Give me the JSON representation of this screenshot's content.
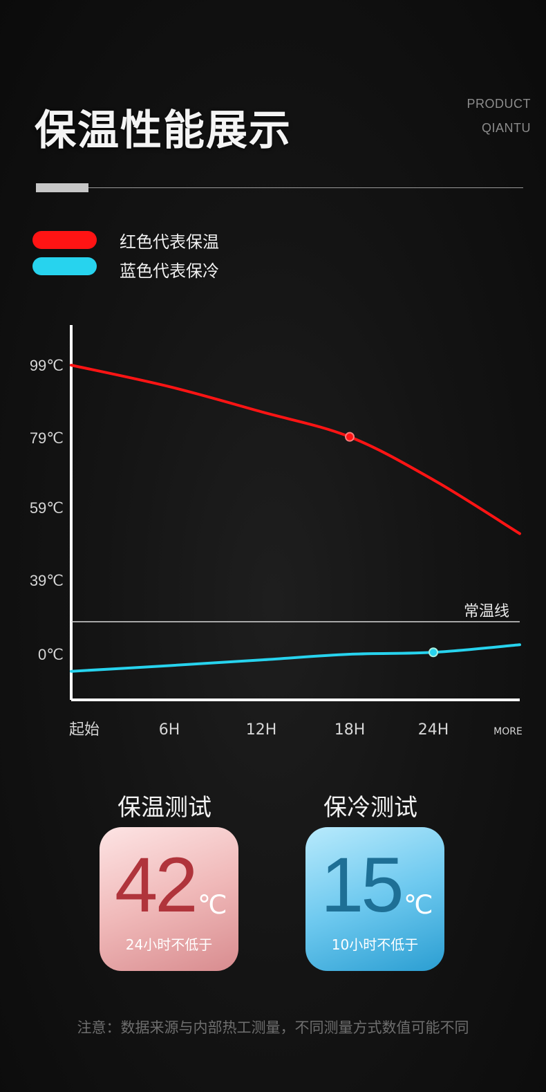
{
  "header": {
    "title": "保温性能展示",
    "tag_line1": "PRODUCT",
    "tag_line2": "QIANTU"
  },
  "legend": [
    {
      "label": "红色代表保温",
      "color": "#ff1414"
    },
    {
      "label": "蓝色代表保冷",
      "color": "#27d3ee"
    }
  ],
  "chart_data": {
    "type": "line",
    "categories": [
      "起始",
      "6H",
      "12H",
      "18H",
      "24H",
      "MORE"
    ],
    "y_ticks": [
      "99℃",
      "79℃",
      "59℃",
      "39℃",
      "0℃"
    ],
    "reference_line_label": "常温线",
    "series": [
      {
        "color": "#ff1414",
        "values": [
          99,
          93,
          86,
          79,
          67,
          52
        ],
        "marker_index": 3
      },
      {
        "color": "#27d3ee",
        "values": [
          -9,
          -6,
          -3,
          0,
          1,
          5
        ],
        "marker_index": 4
      }
    ],
    "axis_color": "#ffffff",
    "grid": false
  },
  "tests": [
    {
      "title": "保温测试",
      "value": "42",
      "unit": "℃",
      "subtitle": "24小时不低于"
    },
    {
      "title": "保冷测试",
      "value": "15",
      "unit": "℃",
      "subtitle": "10小时不低于"
    }
  ],
  "note": "注意：数据来源与内部热工测量，不同测量方式数值可能不同"
}
